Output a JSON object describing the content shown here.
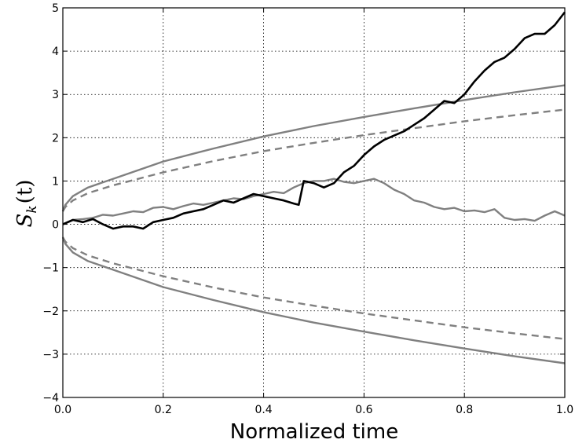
{
  "chart_data": {
    "type": "line",
    "xlabel": "Normalized time",
    "ylabel": {
      "base": "S",
      "sub": "k",
      "arg": "(t)"
    },
    "xlim": [
      0.0,
      1.0
    ],
    "ylim": [
      -4,
      5
    ],
    "x_ticks": [
      "0.0",
      "0.2",
      "0.4",
      "0.6",
      "0.8",
      "1.0"
    ],
    "y_ticks": [
      "−4",
      "−3",
      "−2",
      "−1",
      "0",
      "1",
      "2",
      "3",
      "4",
      "5"
    ],
    "grid": true,
    "colors": {
      "gray": "#808080",
      "black": "#000000"
    },
    "series": [
      {
        "style": "solid",
        "color": "#808080",
        "kind": "boundary",
        "x": [
          0.0,
          0.005,
          0.02,
          0.05,
          0.1,
          0.2,
          0.3,
          0.4,
          0.5,
          0.6,
          0.7,
          0.8,
          0.9,
          1.0
        ],
        "y": [
          0.3,
          0.45,
          0.65,
          0.85,
          1.05,
          1.45,
          1.75,
          2.03,
          2.27,
          2.48,
          2.68,
          2.87,
          3.05,
          3.21
        ]
      },
      {
        "style": "dashed",
        "color": "#808080",
        "kind": "boundary",
        "x": [
          0.0,
          0.005,
          0.02,
          0.05,
          0.1,
          0.2,
          0.3,
          0.4,
          0.5,
          0.6,
          0.7,
          0.8,
          0.9,
          1.0
        ],
        "y": [
          0.3,
          0.4,
          0.55,
          0.72,
          0.9,
          1.2,
          1.46,
          1.69,
          1.88,
          2.06,
          2.22,
          2.38,
          2.52,
          2.65
        ]
      },
      {
        "style": "dashed",
        "color": "#808080",
        "kind": "boundary",
        "x": [
          0.0,
          0.005,
          0.02,
          0.05,
          0.1,
          0.2,
          0.3,
          0.4,
          0.5,
          0.6,
          0.7,
          0.8,
          0.9,
          1.0
        ],
        "y": [
          -0.3,
          -0.4,
          -0.55,
          -0.72,
          -0.9,
          -1.2,
          -1.46,
          -1.69,
          -1.88,
          -2.06,
          -2.22,
          -2.38,
          -2.52,
          -2.65
        ]
      },
      {
        "style": "solid",
        "color": "#808080",
        "kind": "boundary",
        "x": [
          0.0,
          0.005,
          0.02,
          0.05,
          0.1,
          0.2,
          0.3,
          0.4,
          0.5,
          0.6,
          0.7,
          0.8,
          0.9,
          1.0
        ],
        "y": [
          -0.3,
          -0.45,
          -0.65,
          -0.85,
          -1.05,
          -1.45,
          -1.75,
          -2.03,
          -2.27,
          -2.48,
          -2.68,
          -2.87,
          -3.05,
          -3.21
        ]
      },
      {
        "style": "solid",
        "color": "#808080",
        "kind": "path",
        "x": [
          0.0,
          0.02,
          0.04,
          0.06,
          0.08,
          0.1,
          0.12,
          0.14,
          0.16,
          0.18,
          0.2,
          0.22,
          0.24,
          0.26,
          0.28,
          0.3,
          0.32,
          0.34,
          0.36,
          0.38,
          0.4,
          0.42,
          0.44,
          0.46,
          0.48,
          0.5,
          0.52,
          0.54,
          0.56,
          0.58,
          0.6,
          0.62,
          0.64,
          0.66,
          0.68,
          0.7,
          0.72,
          0.74,
          0.76,
          0.78,
          0.8,
          0.82,
          0.84,
          0.86,
          0.88,
          0.9,
          0.92,
          0.94,
          0.96,
          0.98,
          1.0
        ],
        "y": [
          0.0,
          0.1,
          0.12,
          0.15,
          0.22,
          0.2,
          0.25,
          0.3,
          0.28,
          0.38,
          0.4,
          0.35,
          0.42,
          0.48,
          0.45,
          0.5,
          0.55,
          0.6,
          0.58,
          0.65,
          0.7,
          0.75,
          0.72,
          0.85,
          0.95,
          1.0,
          1.0,
          1.05,
          0.98,
          0.95,
          1.0,
          1.05,
          0.95,
          0.8,
          0.7,
          0.55,
          0.5,
          0.4,
          0.35,
          0.38,
          0.3,
          0.32,
          0.28,
          0.35,
          0.15,
          0.1,
          0.12,
          0.08,
          0.2,
          0.3,
          0.2
        ]
      },
      {
        "style": "solid",
        "color": "#000000",
        "kind": "path",
        "x": [
          0.0,
          0.02,
          0.04,
          0.06,
          0.08,
          0.1,
          0.12,
          0.14,
          0.16,
          0.18,
          0.2,
          0.22,
          0.24,
          0.26,
          0.28,
          0.3,
          0.32,
          0.34,
          0.36,
          0.38,
          0.4,
          0.42,
          0.44,
          0.46,
          0.47,
          0.48,
          0.5,
          0.52,
          0.54,
          0.56,
          0.58,
          0.6,
          0.62,
          0.64,
          0.66,
          0.68,
          0.7,
          0.72,
          0.74,
          0.76,
          0.78,
          0.8,
          0.82,
          0.84,
          0.86,
          0.88,
          0.9,
          0.92,
          0.94,
          0.96,
          0.98,
          1.0
        ],
        "y": [
          0.0,
          0.1,
          0.05,
          0.12,
          0.0,
          -0.1,
          -0.05,
          -0.05,
          -0.1,
          0.05,
          0.1,
          0.15,
          0.25,
          0.3,
          0.35,
          0.45,
          0.55,
          0.5,
          0.6,
          0.7,
          0.65,
          0.6,
          0.55,
          0.48,
          0.45,
          1.0,
          0.95,
          0.85,
          0.95,
          1.2,
          1.35,
          1.6,
          1.8,
          1.95,
          2.05,
          2.15,
          2.3,
          2.45,
          2.65,
          2.85,
          2.8,
          3.0,
          3.3,
          3.55,
          3.75,
          3.85,
          4.05,
          4.3,
          4.4,
          4.4,
          4.6,
          4.9
        ]
      }
    ]
  }
}
